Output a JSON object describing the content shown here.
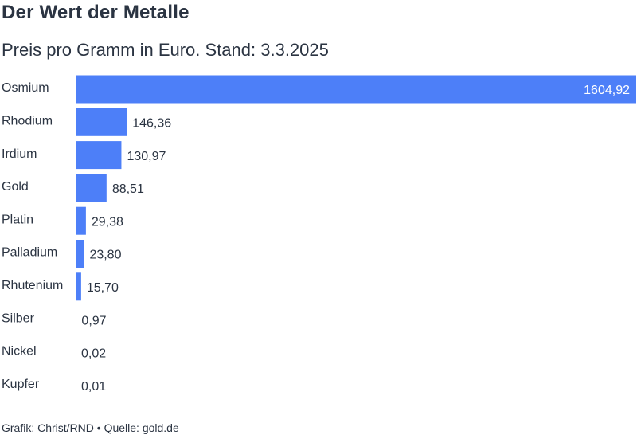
{
  "title": "Der Wert der Metalle",
  "subtitle": "Preis pro Gramm in Euro. Stand: 3.3.2025",
  "footer": "Grafik: Christ/RND • Quelle: gold.de",
  "colors": {
    "bar": "#4d7ff8",
    "text": "#2b3442",
    "label_inside": "#ffffff"
  },
  "chart_data": {
    "type": "bar",
    "orientation": "horizontal",
    "categories": [
      "Osmium",
      "Rhodium",
      "Irdium",
      "Gold",
      "Platin",
      "Palladium",
      "Rhutenium",
      "Silber",
      "Nickel",
      "Kupfer"
    ],
    "values": [
      1604.92,
      146.36,
      130.97,
      88.51,
      29.38,
      23.8,
      15.7,
      0.97,
      0.02,
      0.01
    ],
    "value_labels": [
      "1604,92",
      "146,36",
      "130,97",
      "88,51",
      "29,38",
      "23,80",
      "15,70",
      "0,97",
      "0,02",
      "0,01"
    ],
    "xlim": [
      0,
      1604.92
    ],
    "grid": false,
    "legend": "none"
  }
}
